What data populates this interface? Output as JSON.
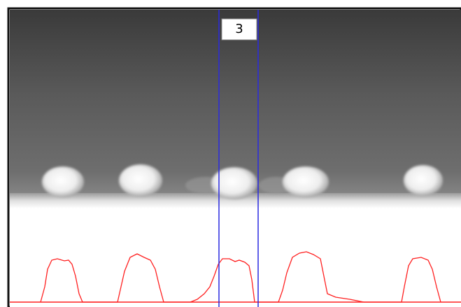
{
  "frame_label": "3"
}
